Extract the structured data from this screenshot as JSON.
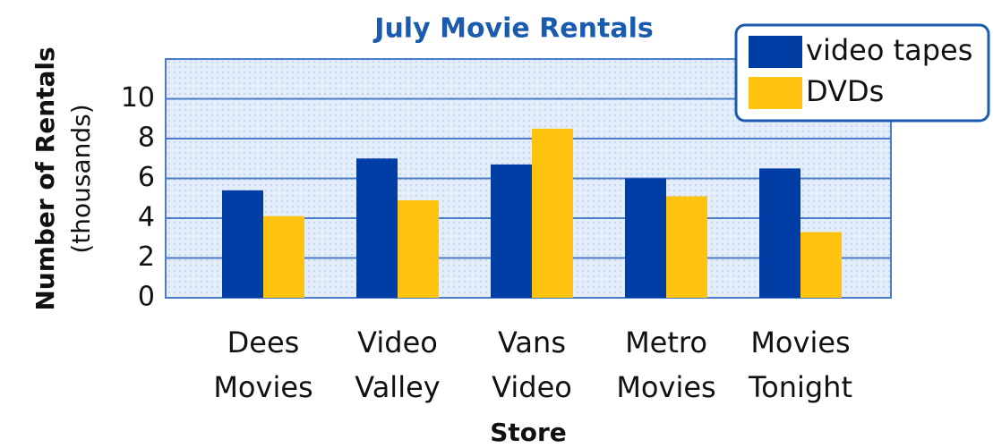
{
  "chart_data": {
    "type": "bar",
    "title": "July Movie Rentals",
    "xlabel": "Store",
    "ylabel": [
      "Number of Rentals",
      "(thousands)"
    ],
    "categories": [
      [
        "Dees",
        "Movies"
      ],
      [
        "Video",
        "Valley"
      ],
      [
        "Vans",
        "Video"
      ],
      [
        "Metro",
        "Movies"
      ],
      [
        "Movies",
        "Tonight"
      ]
    ],
    "series": [
      {
        "name": "video tapes",
        "color": "#003da5",
        "values": [
          5.4,
          7.0,
          6.7,
          6.0,
          6.5
        ]
      },
      {
        "name": "DVDs",
        "color": "#ffc20e",
        "values": [
          4.1,
          4.9,
          8.5,
          5.1,
          3.3
        ]
      }
    ],
    "ylim": [
      0,
      12
    ],
    "yticks": [
      0,
      2,
      4,
      6,
      8,
      10
    ],
    "grid": true,
    "legend": "upper right"
  }
}
